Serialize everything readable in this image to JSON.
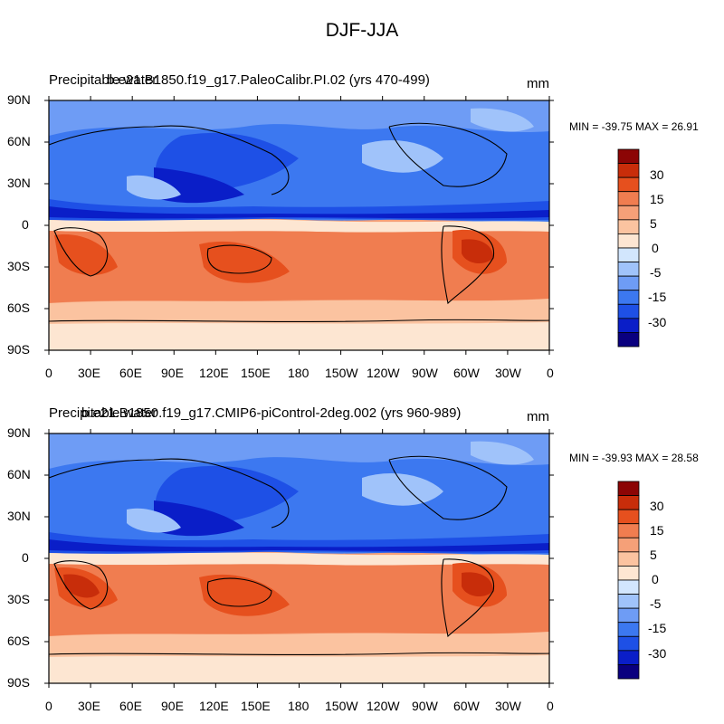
{
  "figure": {
    "title": "DJF-JJA"
  },
  "palette": [
    "#0a007f",
    "#0a1ec8",
    "#1e50e6",
    "#3c78f0",
    "#6e9cf5",
    "#a0c3fa",
    "#d2e6fd",
    "#fde6d2",
    "#fbc3a0",
    "#f5a078",
    "#f07d50",
    "#e6501e",
    "#c82d0a",
    "#8c0505"
  ],
  "colorbar_labels": [
    "30",
    "15",
    "5",
    "0",
    "-5",
    "-15",
    "-30"
  ],
  "axes": {
    "lat_labels": [
      "90N",
      "60N",
      "30N",
      "0",
      "30S",
      "60S",
      "90S"
    ],
    "lon_labels": [
      "0",
      "30E",
      "60E",
      "90E",
      "120E",
      "150E",
      "180",
      "150W",
      "120W",
      "90W",
      "60W",
      "30W",
      "0"
    ]
  },
  "panels": [
    {
      "left_label": "Precipitable water",
      "center_label": "b.e21.B1850.f19_g17.PaleoCalibr.PI.02 (yrs 470-499)",
      "units": "mm",
      "stats": "MIN = -39.75 MAX =  26.91"
    },
    {
      "left_label": "Precipitable water",
      "center_label": "b.e21.B1850.f19_g17.CMIP6-piControl-2deg.002 (yrs 960-989)",
      "units": "mm",
      "stats": "MIN = -39.93 MAX =  28.58"
    }
  ]
}
